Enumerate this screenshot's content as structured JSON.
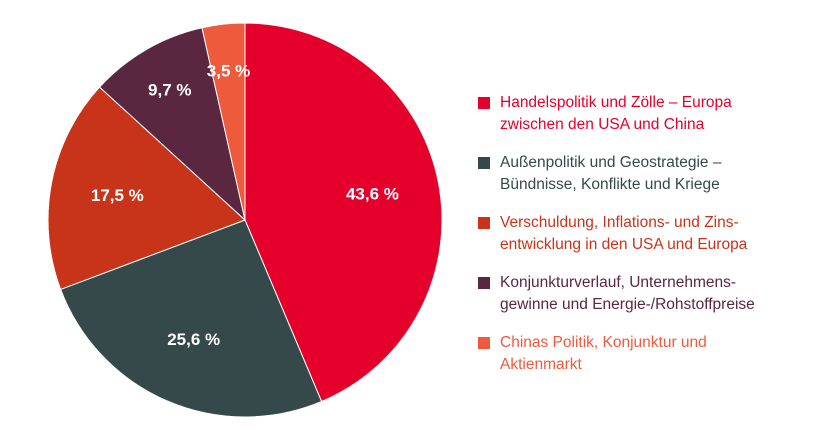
{
  "chart_data": {
    "type": "pie",
    "title": "",
    "slices": [
      {
        "label_lines": [
          "Handelspolitik und Zölle – Europa",
          "zwischen den USA und China"
        ],
        "value": 43.6,
        "value_label": "43,6 %",
        "color": "#e4002b",
        "text_color": "#e4002b"
      },
      {
        "label_lines": [
          "Außenpolitik und Geostrategie –",
          "Bündnisse, Konflikte und Kriege"
        ],
        "value": 25.6,
        "value_label": "25,6 %",
        "color": "#35494b",
        "text_color": "#35494b"
      },
      {
        "label_lines": [
          "Verschuldung, Inflations- und Zins-",
          "entwicklung in den USA und Europa"
        ],
        "value": 17.5,
        "value_label": "17,5 %",
        "color": "#c8341a",
        "text_color": "#c8341a"
      },
      {
        "label_lines": [
          "Konjunkturverlauf, Unternehmens-",
          "gewinne und Energie-/Rohstoffpreise"
        ],
        "value": 9.7,
        "value_label": "9,7 %",
        "color": "#5a2640",
        "text_color": "#5a2640"
      },
      {
        "label_lines": [
          "Chinas Politik, Konjunktur und",
          "Aktienmarkt"
        ],
        "value": 3.5,
        "value_label": "3,5 %",
        "color": "#ee5a3c",
        "text_color": "#ee5a3c"
      }
    ],
    "start": "12 o'clock",
    "direction": "clockwise",
    "legend_position": "right"
  }
}
